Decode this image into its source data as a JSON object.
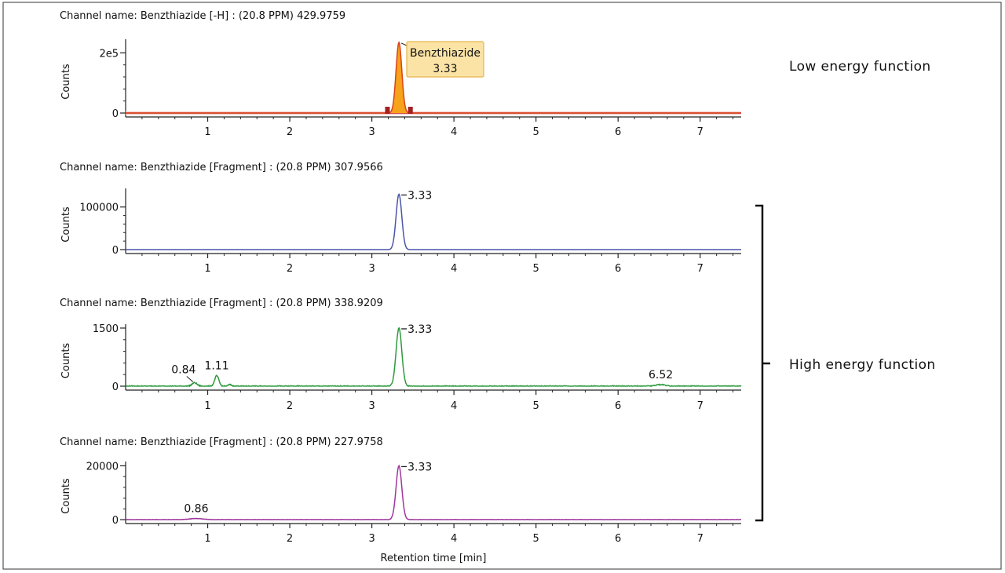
{
  "axis_x_label": "Retention time [min]",
  "right_labels": {
    "low": "Low energy function",
    "high": "High energy function"
  },
  "chart_data": [
    {
      "type": "line",
      "title": "Channel name: Benzthiazide [-H] : (20.8 PPM) 429.9759",
      "ylabel": "Counts",
      "xlim": [
        0,
        7.5
      ],
      "ylim": [
        0,
        240000
      ],
      "x_ticks": [
        "1",
        "2",
        "3",
        "4",
        "5",
        "6",
        "7"
      ],
      "y_ticks": [
        {
          "value": 0,
          "label": "0"
        },
        {
          "value": 200000,
          "label": "2e5"
        }
      ],
      "color": "#d9421a",
      "baseline_color": "#c8282a",
      "fill_color": "#f7a21b",
      "peaks": [
        {
          "x": 3.33,
          "height": 235000,
          "width": 0.035
        }
      ],
      "noise": 0,
      "peak_labels": [],
      "annotation_box": {
        "name": "Benzthiazide",
        "rt": "3.33",
        "x": 3.33,
        "fill": "#fbe3a6",
        "stroke": "#e5b44a"
      }
    },
    {
      "type": "line",
      "title": "Channel name: Benzthiazide [Fragment] : (20.8 PPM) 307.9566",
      "ylabel": "Counts",
      "xlim": [
        0,
        7.5
      ],
      "ylim": [
        0,
        140000
      ],
      "x_ticks": [
        "1",
        "2",
        "3",
        "4",
        "5",
        "6",
        "7"
      ],
      "y_ticks": [
        {
          "value": 0,
          "label": "0"
        },
        {
          "value": 100000,
          "label": "100000"
        }
      ],
      "color": "#4a55a8",
      "peaks": [
        {
          "x": 3.33,
          "height": 130000,
          "width": 0.035
        }
      ],
      "noise": 0,
      "peak_labels": [
        {
          "text": "3.33",
          "x": 3.33,
          "y": 130000,
          "style": "dash"
        }
      ]
    },
    {
      "type": "line",
      "title": "Channel name: Benzthiazide [Fragment] : (20.8 PPM) 338.9209",
      "ylabel": "Counts",
      "xlim": [
        0,
        7.5
      ],
      "ylim": [
        0,
        1560
      ],
      "x_ticks": [
        "1",
        "2",
        "3",
        "4",
        "5",
        "6",
        "7"
      ],
      "y_ticks": [
        {
          "value": 0,
          "label": "0"
        },
        {
          "value": 1500,
          "label": "1500"
        }
      ],
      "color": "#2e9a3e",
      "peaks": [
        {
          "x": 3.33,
          "height": 1500,
          "width": 0.035
        },
        {
          "x": 0.84,
          "height": 90,
          "width": 0.03
        },
        {
          "x": 1.11,
          "height": 270,
          "width": 0.025
        },
        {
          "x": 1.27,
          "height": 40,
          "width": 0.02
        },
        {
          "x": 6.52,
          "height": 40,
          "width": 0.06
        }
      ],
      "noise": 14,
      "peak_labels": [
        {
          "text": "0.84",
          "x": 0.84,
          "y": 90,
          "style": "slant"
        },
        {
          "text": "1.11",
          "x": 1.11,
          "y": 270,
          "style": "above"
        },
        {
          "text": "6.52",
          "x": 6.52,
          "y": 40,
          "style": "above"
        },
        {
          "text": "3.33",
          "x": 3.33,
          "y": 1500,
          "style": "dash"
        }
      ]
    },
    {
      "type": "line",
      "title": "Channel name: Benzthiazide [Fragment] : (20.8 PPM) 227.9758",
      "ylabel": "Counts",
      "xlim": [
        0,
        7.5
      ],
      "ylim": [
        0,
        21000
      ],
      "x_ticks": [
        "1",
        "2",
        "3",
        "4",
        "5",
        "6",
        "7"
      ],
      "y_ticks": [
        {
          "value": 0,
          "label": "0"
        },
        {
          "value": 20000,
          "label": "20000"
        }
      ],
      "color": "#a0369e",
      "peaks": [
        {
          "x": 3.33,
          "height": 20000,
          "width": 0.035
        },
        {
          "x": 0.86,
          "height": 400,
          "width": 0.08
        }
      ],
      "noise": 70,
      "peak_labels": [
        {
          "text": "0.86",
          "x": 0.86,
          "y": 400,
          "style": "above"
        },
        {
          "text": "3.33",
          "x": 3.33,
          "y": 20000,
          "style": "dash"
        }
      ]
    }
  ]
}
